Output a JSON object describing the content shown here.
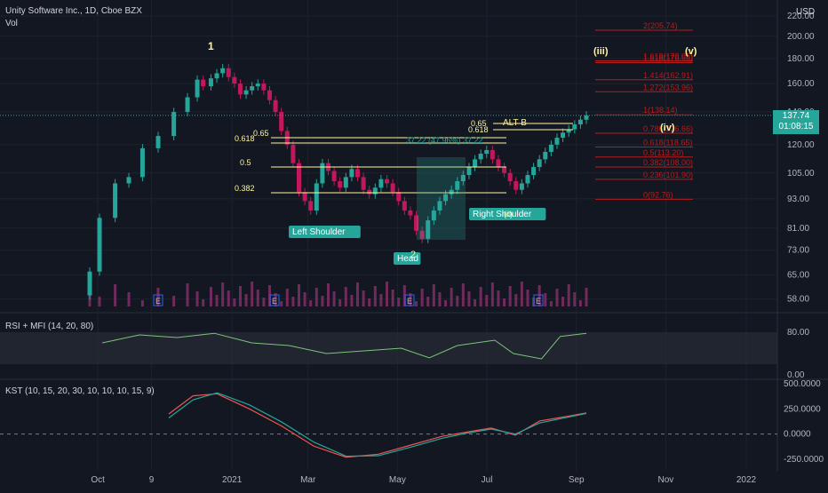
{
  "header": {
    "title": "Unity Software Inc., 1D, Cboe BZX",
    "vol": "Vol",
    "currency": "USD",
    "price": "137.74",
    "countdown": "01:08:15"
  },
  "colors": {
    "background": "#131722",
    "up": "#26a69a",
    "down": "#ef5350",
    "vol_up": "#8a2f6b",
    "annot_yellow": "#fff59d",
    "fib": "#b71c1c",
    "rsi": "#7cc47c",
    "kst": "#ef5350",
    "kst_signal": "#26a69a",
    "candle_up": "#26a69a",
    "candle_down": "#c2185b"
  },
  "chart_data": [
    {
      "type": "candlestick",
      "title": "Unity Software Inc., 1D, Cboe BZX",
      "ylabel": "USD",
      "ylim": [
        56,
        220
      ],
      "log_scale": true,
      "y_ticks": [
        "220.00",
        "200.00",
        "180.00",
        "160.00",
        "140.00",
        "120.00",
        "105.00",
        "93.00",
        "81.00",
        "73.00",
        "65.00",
        "58.00"
      ],
      "x_ticks": [
        "Oct",
        "9",
        "2021",
        "Mar",
        "May",
        "Jul",
        "Sep",
        "Nov",
        "2022"
      ],
      "series": [
        {
          "values": [
            [
              0,
              59
            ],
            [
              5,
              66
            ],
            [
              10,
              85
            ],
            [
              18,
              100
            ],
            [
              25,
              103
            ],
            [
              32,
              118
            ],
            [
              40,
              125
            ],
            [
              48,
              140
            ],
            [
              55,
              150
            ],
            [
              60,
              163
            ],
            [
              63,
              158
            ],
            [
              67,
              164
            ],
            [
              70,
              168
            ],
            [
              73,
              172
            ],
            [
              76,
              165
            ],
            [
              79,
              160
            ],
            [
              82,
              152
            ],
            [
              85,
              155
            ],
            [
              88,
              158
            ],
            [
              91,
              160
            ],
            [
              94,
              155
            ],
            [
              97,
              148
            ],
            [
              100,
              140
            ],
            [
              103,
              128
            ],
            [
              106,
              120
            ],
            [
              109,
              110
            ],
            [
              112,
              96
            ],
            [
              115,
              92
            ],
            [
              118,
              88
            ],
            [
              121,
              100
            ],
            [
              124,
              110
            ],
            [
              127,
              106
            ],
            [
              130,
              101
            ],
            [
              133,
              98
            ],
            [
              136,
              103
            ],
            [
              139,
              107
            ],
            [
              142,
              103
            ],
            [
              145,
              97
            ],
            [
              148,
              95
            ],
            [
              151,
              98
            ],
            [
              154,
              102
            ],
            [
              157,
              100
            ],
            [
              160,
              96
            ],
            [
              163,
              92
            ],
            [
              166,
              88
            ],
            [
              169,
              86
            ],
            [
              172,
              80
            ],
            [
              175,
              77
            ],
            [
              178,
              84
            ],
            [
              181,
              88
            ],
            [
              184,
              92
            ],
            [
              187,
              95
            ],
            [
              190,
              97
            ],
            [
              193,
              101
            ],
            [
              196,
              104
            ],
            [
              199,
              108
            ],
            [
              202,
              112
            ],
            [
              205,
              115
            ],
            [
              208,
              117
            ],
            [
              211,
              112
            ],
            [
              214,
              108
            ],
            [
              217,
              105
            ],
            [
              220,
              101
            ],
            [
              223,
              97
            ],
            [
              226,
              100
            ],
            [
              229,
              104
            ],
            [
              232,
              108
            ],
            [
              235,
              112
            ],
            [
              238,
              116
            ],
            [
              241,
              120
            ],
            [
              244,
              124
            ],
            [
              247,
              127
            ],
            [
              250,
              129
            ],
            [
              253,
              132
            ],
            [
              256,
              135
            ],
            [
              259,
              137.74
            ]
          ]
        }
      ],
      "fib_levels": [
        {
          "label": "2(205.74)",
          "value": 205.74
        },
        {
          "label": "1.618(178.05)",
          "value": 178.05
        },
        {
          "label": "1.618(176.65)",
          "value": 176.65
        },
        {
          "label": "1.414(162.91)",
          "value": 162.91
        },
        {
          "label": "1.272(153.96)",
          "value": 153.96
        },
        {
          "label": "1(138.14)",
          "value": 138.14
        },
        {
          "label": "0.786(126.66)",
          "value": 126.66
        },
        {
          "label": "0.618(118.65)",
          "value": 118.65
        },
        {
          "label": "0.5(113.20)",
          "value": 113.2
        },
        {
          "label": "0.382(108.00)",
          "value": 108.0
        },
        {
          "label": "0.236(101.90)",
          "value": 101.9
        },
        {
          "label": "0(92.76)",
          "value": 92.76
        }
      ],
      "annotations": [
        "1",
        "(iii)",
        "(v)",
        "(iv)",
        "ALT B",
        "0.65",
        "0.618",
        "0.65",
        "0.618",
        "0.5",
        "0.382",
        "0.786",
        "0.236",
        "Left Shoulder",
        "Head",
        "Right Shoulder",
        "2",
        "37.22 (47.96%) 37.22",
        "(ii)"
      ],
      "earnings_markers": [
        "E",
        "E",
        "E",
        "E"
      ]
    },
    {
      "type": "line",
      "title": "RSI + MFI (14, 20, 80)",
      "ylim": [
        0,
        100
      ],
      "y_ticks": [
        "80.00",
        "0.00"
      ],
      "bands": [
        20,
        80
      ],
      "series": [
        {
          "values": [
            [
              0,
              60
            ],
            [
              20,
              75
            ],
            [
              40,
              70
            ],
            [
              60,
              78
            ],
            [
              80,
              60
            ],
            [
              100,
              55
            ],
            [
              120,
              40
            ],
            [
              140,
              45
            ],
            [
              160,
              50
            ],
            [
              175,
              32
            ],
            [
              190,
              55
            ],
            [
              210,
              65
            ],
            [
              220,
              40
            ],
            [
              235,
              30
            ],
            [
              245,
              72
            ],
            [
              259,
              78
            ]
          ]
        }
      ]
    },
    {
      "type": "line",
      "title": "KST (10, 15, 20, 30, 10, 10, 10, 15, 9)",
      "ylim": [
        -250,
        500
      ],
      "y_ticks": [
        "500.0000",
        "250.0000",
        "0.0000",
        "-250.0000"
      ],
      "series": [
        {
          "values": [
            [
              0,
              200
            ],
            [
              15,
              380
            ],
            [
              30,
              400
            ],
            [
              50,
              250
            ],
            [
              70,
              80
            ],
            [
              90,
              -120
            ],
            [
              110,
              -230
            ],
            [
              130,
              -200
            ],
            [
              150,
              -110
            ],
            [
              170,
              -20
            ],
            [
              185,
              20
            ],
            [
              200,
              60
            ],
            [
              215,
              -10
            ],
            [
              230,
              130
            ],
            [
              245,
              170
            ],
            [
              259,
              210
            ]
          ]
        },
        {
          "values": [
            [
              0,
              160
            ],
            [
              15,
              340
            ],
            [
              30,
              410
            ],
            [
              50,
              290
            ],
            [
              70,
              120
            ],
            [
              90,
              -80
            ],
            [
              110,
              -220
            ],
            [
              130,
              -215
            ],
            [
              150,
              -130
            ],
            [
              170,
              -40
            ],
            [
              185,
              10
            ],
            [
              200,
              50
            ],
            [
              215,
              0
            ],
            [
              230,
              110
            ],
            [
              245,
              160
            ],
            [
              259,
              205
            ]
          ]
        }
      ]
    }
  ]
}
